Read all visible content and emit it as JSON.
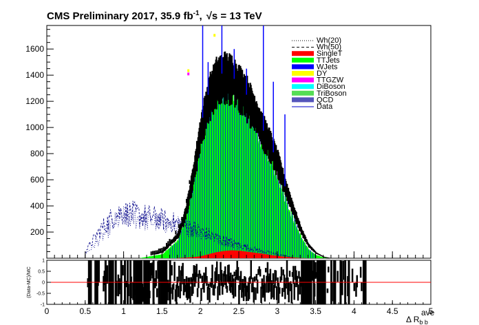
{
  "header": {
    "title_main": "CMS Preliminary 2017, 35.9 fb",
    "title_exp": "-1",
    "title_sep": ",",
    "title_sqrt_s": "√s = 13 TeV"
  },
  "chart_data": {
    "type": "histogram-stack-with-ratio",
    "xlabel_main": "Δ R",
    "xlabel_sub": "b b",
    "xlabel_sup": "ave",
    "ratio_ylabel": "(Data-MC)/MC",
    "xlim": [
      0,
      5
    ],
    "ylim": [
      0,
      1780
    ],
    "ratio_ylim": [
      -1,
      1
    ],
    "x_ticks": [
      0,
      0.5,
      1,
      1.5,
      2,
      2.5,
      3,
      3.5,
      4,
      4.5,
      5
    ],
    "x_tick_labels": [
      "0",
      "0.5",
      "1",
      "1.5",
      "2",
      "2.5",
      "3",
      "3.5",
      "4",
      "4.5",
      "5"
    ],
    "y_ticks": [
      200,
      400,
      600,
      800,
      1000,
      1200,
      1400,
      1600
    ],
    "y_tick_labels": [
      "200",
      "400",
      "600",
      "800",
      "1000",
      "1200",
      "1400",
      "1600"
    ],
    "ratio_ticks": [
      -1,
      -0.5,
      0,
      0.5,
      1
    ],
    "ratio_tick_labels": [
      "-1",
      "-0.5",
      "0",
      "0.5",
      "1"
    ],
    "legend_position": "top-right",
    "legend": [
      {
        "label": "Wh(20)",
        "style": "dotted",
        "color": "#000000"
      },
      {
        "label": "Wh(50)",
        "style": "dashed",
        "color": "#000000"
      },
      {
        "label": "SingleT",
        "style": "fill",
        "color": "#ff0000"
      },
      {
        "label": "TTJets",
        "style": "fill",
        "color": "#00ff00"
      },
      {
        "label": "WJets",
        "style": "fill",
        "color": "#0000ff"
      },
      {
        "label": "DY",
        "style": "fill",
        "color": "#ffff00"
      },
      {
        "label": "TTGZW",
        "style": "fill",
        "color": "#ff00ff"
      },
      {
        "label": "DiBoson",
        "style": "fill",
        "color": "#00ffff"
      },
      {
        "label": "TriBoson",
        "style": "fill",
        "color": "#55dd55"
      },
      {
        "label": "QCD",
        "style": "fill",
        "color": "#5555bb"
      },
      {
        "label": "Data",
        "style": "line",
        "color": "#0000cc"
      }
    ],
    "data_envelope": {
      "x": [
        0.9,
        1.2,
        1.5,
        1.7,
        1.8,
        1.9,
        2.0,
        2.1,
        2.2,
        2.3,
        2.4,
        2.5,
        2.6,
        2.7,
        2.8,
        2.9,
        3.0,
        3.1,
        3.2,
        3.3,
        3.4,
        3.5,
        3.6,
        3.7
      ],
      "total": [
        0,
        0,
        50,
        180,
        350,
        650,
        1000,
        1250,
        1380,
        1420,
        1400,
        1330,
        1250,
        1130,
        1000,
        880,
        740,
        550,
        380,
        220,
        100,
        40,
        10,
        0
      ],
      "ttjets": [
        0,
        0,
        30,
        130,
        300,
        600,
        950,
        1180,
        1300,
        1330,
        1300,
        1230,
        1150,
        1030,
        900,
        780,
        640,
        460,
        310,
        170,
        70,
        25,
        5,
        0
      ],
      "singlet": [
        0,
        0,
        0,
        2,
        4,
        8,
        15,
        30,
        45,
        55,
        60,
        58,
        50,
        42,
        35,
        25,
        18,
        10,
        5,
        2,
        0,
        0,
        0,
        0
      ]
    },
    "signal_wh20": {
      "x": [
        0.5,
        0.7,
        0.9,
        1.0,
        1.2,
        1.4,
        1.6,
        1.8,
        2.0,
        2.2,
        2.4,
        2.6,
        2.8,
        3.0,
        3.2
      ],
      "y": [
        30,
        150,
        280,
        320,
        300,
        280,
        260,
        240,
        200,
        150,
        110,
        80,
        50,
        25,
        5
      ]
    },
    "signal_wh50": {
      "x": [
        0.5,
        0.7,
        0.9,
        1.0,
        1.2,
        1.4,
        1.6,
        1.8,
        2.0,
        2.2,
        2.4,
        2.6,
        2.8,
        3.0,
        3.2
      ],
      "y": [
        50,
        220,
        340,
        350,
        330,
        310,
        280,
        250,
        210,
        160,
        120,
        85,
        55,
        30,
        8
      ]
    },
    "data_spikes": [
      {
        "x": 2.03,
        "y": 1780
      },
      {
        "x": 2.28,
        "y": 1780
      },
      {
        "x": 2.44,
        "y": 1600
      },
      {
        "x": 2.82,
        "y": 1780
      },
      {
        "x": 2.1,
        "y": 1500
      },
      {
        "x": 2.6,
        "y": 1450
      },
      {
        "x": 2.95,
        "y": 1350
      },
      {
        "x": 3.1,
        "y": 1100
      }
    ],
    "ratio_range": [
      0.5,
      4.15
    ]
  }
}
